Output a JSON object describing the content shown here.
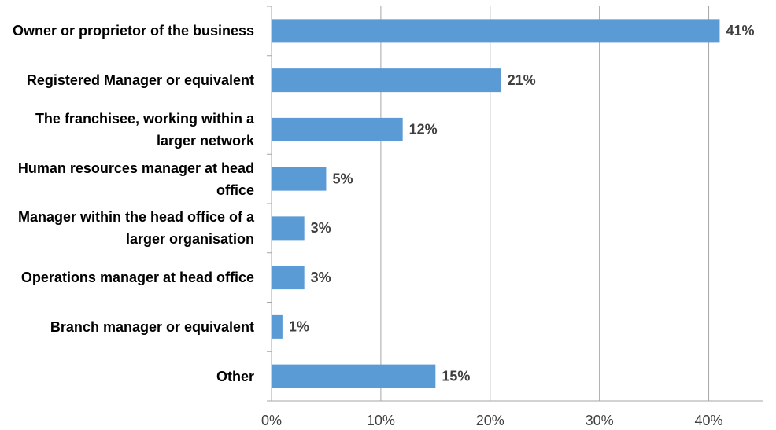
{
  "chart_data": {
    "type": "bar",
    "orientation": "horizontal",
    "categories": [
      "Owner or proprietor of the business",
      "Registered Manager or equivalent",
      "The franchisee, working within a larger network",
      "Human resources manager at head office",
      "Manager within the head office of a larger organisation",
      "Operations manager at head office",
      "Branch manager or equivalent",
      "Other"
    ],
    "values": [
      41,
      21,
      12,
      5,
      3,
      3,
      1,
      15
    ],
    "value_labels": [
      "41%",
      "21%",
      "12%",
      "5%",
      "3%",
      "3%",
      "1%",
      "15%"
    ],
    "color": "#5b9bd5",
    "xlim": [
      0,
      45
    ],
    "xticks": [
      {
        "value": 0,
        "label": "0%"
      },
      {
        "value": 10,
        "label": "10%"
      },
      {
        "value": 20,
        "label": "20%"
      },
      {
        "value": 30,
        "label": "30%"
      },
      {
        "value": 40,
        "label": "40%"
      }
    ],
    "grid": true
  }
}
